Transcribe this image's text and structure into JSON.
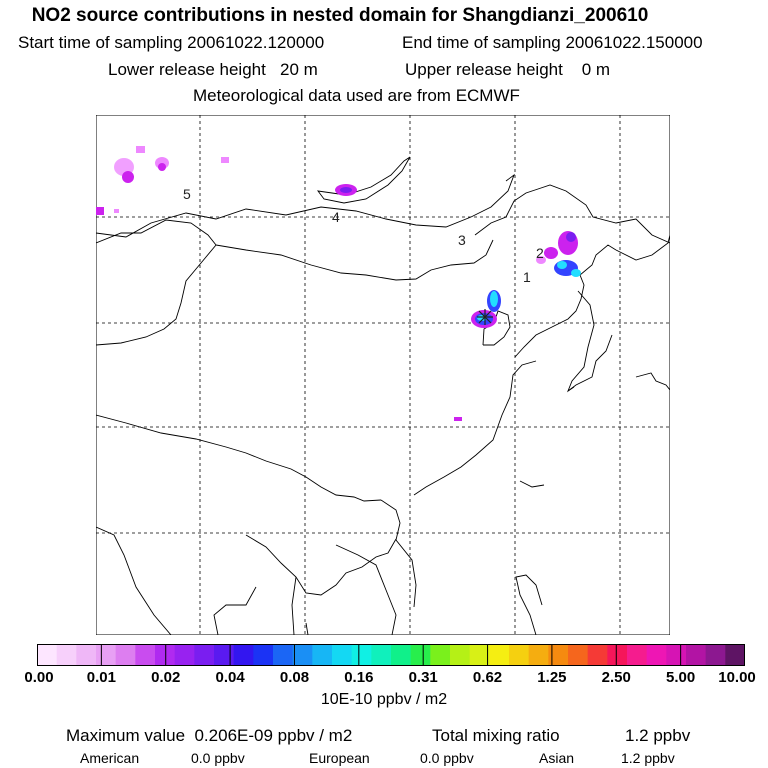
{
  "header": {
    "title": "NO2 source contributions in nested domain for Shangdianzi_200610",
    "start_label": "Start time of sampling 20061022.120000",
    "end_label": "End time of sampling 20061022.150000",
    "lower_label": "Lower release height   20 m",
    "upper_label": "Upper release height    0 m",
    "met_label": "Meteorological data used are from ECMWF"
  },
  "map": {
    "region_labels": [
      "1",
      "2",
      "3",
      "4",
      "5"
    ],
    "plume_colors": {
      "light": "#ee88ff",
      "magenta": "#cc22ee",
      "blue": "#3344ff",
      "cyan": "#22ddff",
      "center": "#00ffcc"
    },
    "station_marker": "star-marker"
  },
  "colorbar": {
    "colors": [
      "#fde6ff",
      "#f7d0fb",
      "#efb7f7",
      "#e8a0f4",
      "#dd7ef0",
      "#c94cef",
      "#b02af0",
      "#9822f0",
      "#7a1ef0",
      "#5a1af0",
      "#3316f0",
      "#1b33f5",
      "#1b66f5",
      "#1a8ff5",
      "#17b6f5",
      "#14d8f3",
      "#10f0e4",
      "#10f0bc",
      "#10f08a",
      "#28ee4c",
      "#7af01c",
      "#b5f016",
      "#d8f016",
      "#f5ee12",
      "#f5d010",
      "#f5ad10",
      "#f58a10",
      "#f5661d",
      "#f53a36",
      "#f5165a",
      "#f51c8e",
      "#ee16b4",
      "#d614b4",
      "#b214a4",
      "#8c1890",
      "#5e1464"
    ],
    "tick_labels": [
      "0.00",
      "0.01",
      "0.02",
      "0.04",
      "0.08",
      "0.16",
      "0.31",
      "0.62",
      "1.25",
      "2.50",
      "5.00",
      "10.00"
    ],
    "units": "10E-10 ppbv / m2"
  },
  "stats": {
    "max_label": "Maximum value  0.206E-09 ppbv / m2",
    "total_label": "Total mixing ratio",
    "total_value": "1.2 ppbv",
    "american_label": "American",
    "american_value": "0.0 ppbv",
    "european_label": "European",
    "european_value": "0.0 ppbv",
    "asian_label": "Asian",
    "asian_value": "1.2 ppbv"
  }
}
